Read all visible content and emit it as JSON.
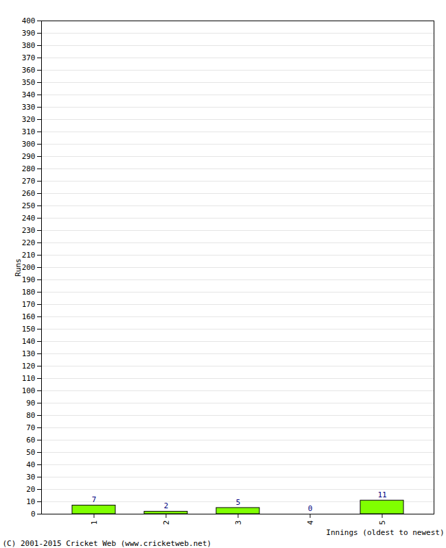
{
  "chart_data": {
    "type": "bar",
    "categories": [
      "1",
      "2",
      "3",
      "4",
      "5"
    ],
    "values": [
      7,
      2,
      5,
      0,
      11
    ],
    "color": "#80ff00",
    "xlabel": "Innings (oldest to newest)",
    "ylabel": "Runs",
    "caption": "(C) 2001-2015 Cricket Web (www.cricketweb.net)",
    "ylim": [
      0,
      400
    ],
    "yticks": [
      0,
      10,
      20,
      30,
      40,
      50,
      60,
      70,
      80,
      90,
      100,
      110,
      120,
      130,
      140,
      150,
      160,
      170,
      180,
      190,
      200,
      210,
      220,
      230,
      240,
      250,
      260,
      270,
      280,
      290,
      300,
      310,
      320,
      330,
      340,
      350,
      360,
      370,
      380,
      390,
      400
    ],
    "grid": true,
    "data_labels": true
  }
}
